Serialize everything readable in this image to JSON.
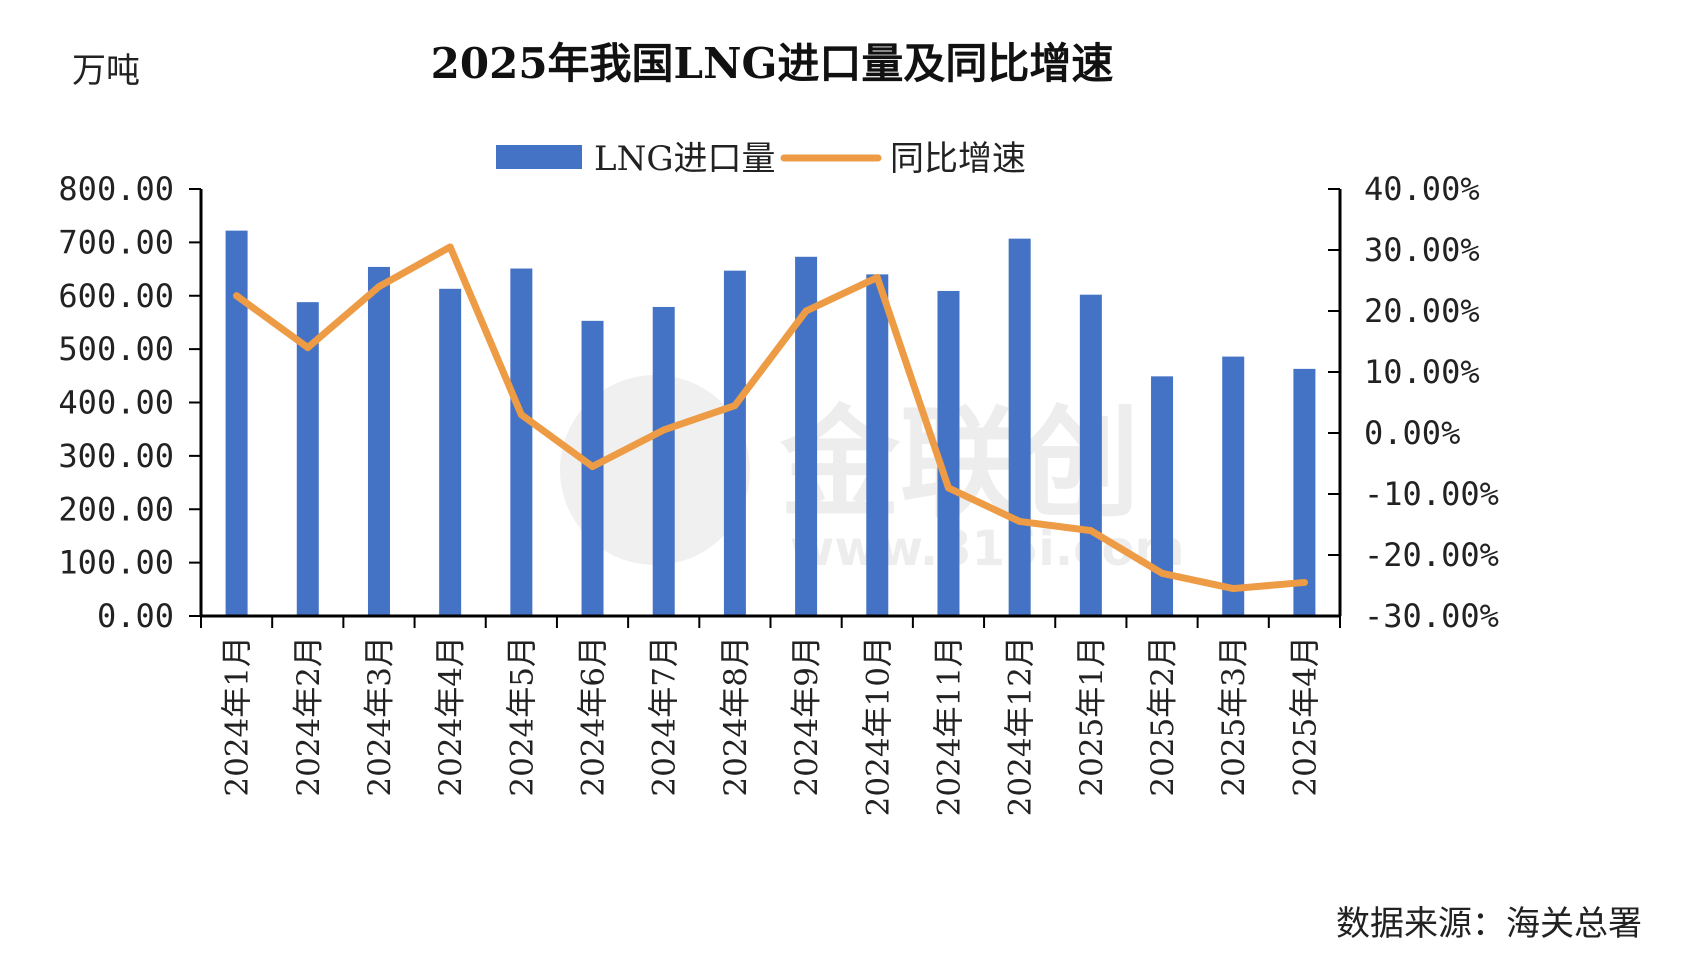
{
  "unit_left": "万吨",
  "source_text": "数据来源：海关总署",
  "watermark": {
    "brand": "金联创",
    "url": "www.315i.com"
  },
  "colors": {
    "bar": "#4472C4",
    "line": "#ED9B45",
    "axis": "#000000"
  },
  "chart_data": {
    "type": "bar",
    "title": "2025年我国LNG进口量及同比增速",
    "categories": [
      "2024年1月",
      "2024年2月",
      "2024年3月",
      "2024年4月",
      "2024年5月",
      "2024年6月",
      "2024年7月",
      "2024年8月",
      "2024年9月",
      "2024年10月",
      "2024年11月",
      "2024年12月",
      "2025年1月",
      "2025年2月",
      "2025年3月",
      "2025年4月"
    ],
    "series": [
      {
        "name": "LNG进口量",
        "type": "bar",
        "axis": "left",
        "values": [
          722,
          588,
          654,
          613,
          651,
          553,
          579,
          647,
          673,
          640,
          609,
          707,
          602,
          449,
          486,
          463
        ]
      },
      {
        "name": "同比增速",
        "type": "line",
        "axis": "right",
        "unit": "%",
        "values": [
          22.5,
          14,
          24,
          30.5,
          3,
          -5.5,
          0.5,
          4.5,
          20,
          25.5,
          -9,
          -14.5,
          -16,
          -23,
          -25.5,
          -24.5
        ]
      }
    ],
    "y_left": {
      "min": 0,
      "max": 800,
      "step": 100,
      "ticks": [
        "0.00",
        "100.00",
        "200.00",
        "300.00",
        "400.00",
        "500.00",
        "600.00",
        "700.00",
        "800.00"
      ]
    },
    "y_right": {
      "min": -30,
      "max": 40,
      "step": 10,
      "ticks": [
        "-30.00%",
        "-20.00%",
        "-10.00%",
        "0.00%",
        "10.00%",
        "20.00%",
        "30.00%",
        "40.00%"
      ]
    },
    "legend": {
      "placement": "top-center",
      "items": [
        {
          "label": "LNG进口量",
          "kind": "bar"
        },
        {
          "label": "同比增速",
          "kind": "line"
        }
      ]
    },
    "grid": false
  }
}
